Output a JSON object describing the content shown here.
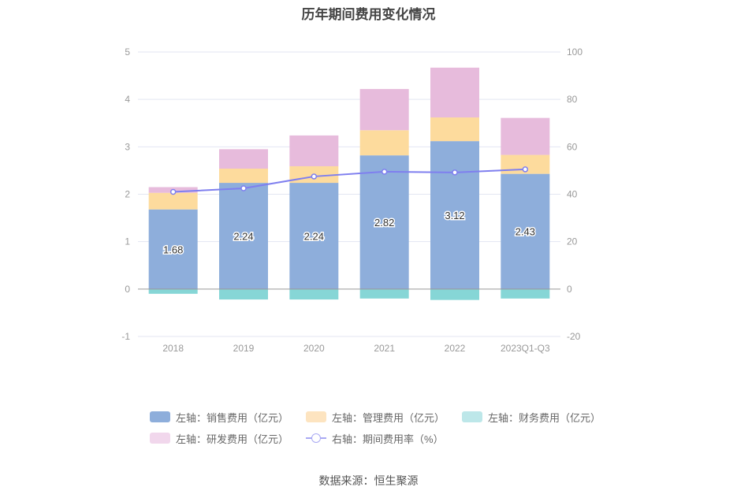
{
  "chart_data": {
    "type": "bar",
    "title": "历年期间费用变化情况",
    "categories": [
      "2018",
      "2019",
      "2020",
      "2021",
      "2022",
      "2023Q1-Q3"
    ],
    "stacked": true,
    "series": [
      {
        "name": "左轴：销售费用（亿元）",
        "axis": "left",
        "type": "bar",
        "color": "#8EAEDB",
        "values": [
          1.68,
          2.24,
          2.24,
          2.82,
          3.12,
          2.43
        ],
        "labels": [
          "1.68",
          "2.24",
          "2.24",
          "2.82",
          "3.12",
          "2.43"
        ]
      },
      {
        "name": "左轴：管理费用（亿元）",
        "axis": "left",
        "type": "bar",
        "color": "#FDDB9D",
        "values": [
          0.35,
          0.3,
          0.35,
          0.53,
          0.5,
          0.4
        ]
      },
      {
        "name": "左轴：财务费用（亿元）",
        "axis": "left",
        "type": "bar",
        "color": "#86D6D6",
        "values": [
          -0.1,
          -0.22,
          -0.22,
          -0.2,
          -0.23,
          -0.2
        ]
      },
      {
        "name": "左轴：研发费用（亿元）",
        "axis": "left",
        "type": "bar",
        "color": "#E7BBDC",
        "values": [
          0.12,
          0.41,
          0.65,
          0.87,
          1.05,
          0.78
        ]
      },
      {
        "name": "右轴：期间费用率（%）",
        "axis": "right",
        "type": "line",
        "color": "#7F7FEF",
        "values": [
          41.0,
          42.5,
          47.5,
          49.5,
          49.2,
          50.5
        ]
      }
    ],
    "y_left": {
      "min": -1,
      "max": 5,
      "ticks": [
        -1,
        0,
        1,
        2,
        3,
        4,
        5
      ]
    },
    "y_right": {
      "min": -20,
      "max": 100,
      "ticks": [
        -20,
        0,
        20,
        40,
        60,
        80,
        100
      ]
    },
    "grid": true,
    "legend_position": "bottom",
    "legend_swatch_colors": [
      "#8EAEDB",
      "#FDE4C0",
      "#BDE7E9",
      "#F1D7EC",
      "#A9A9F3"
    ]
  },
  "source": "数据来源：恒生聚源"
}
